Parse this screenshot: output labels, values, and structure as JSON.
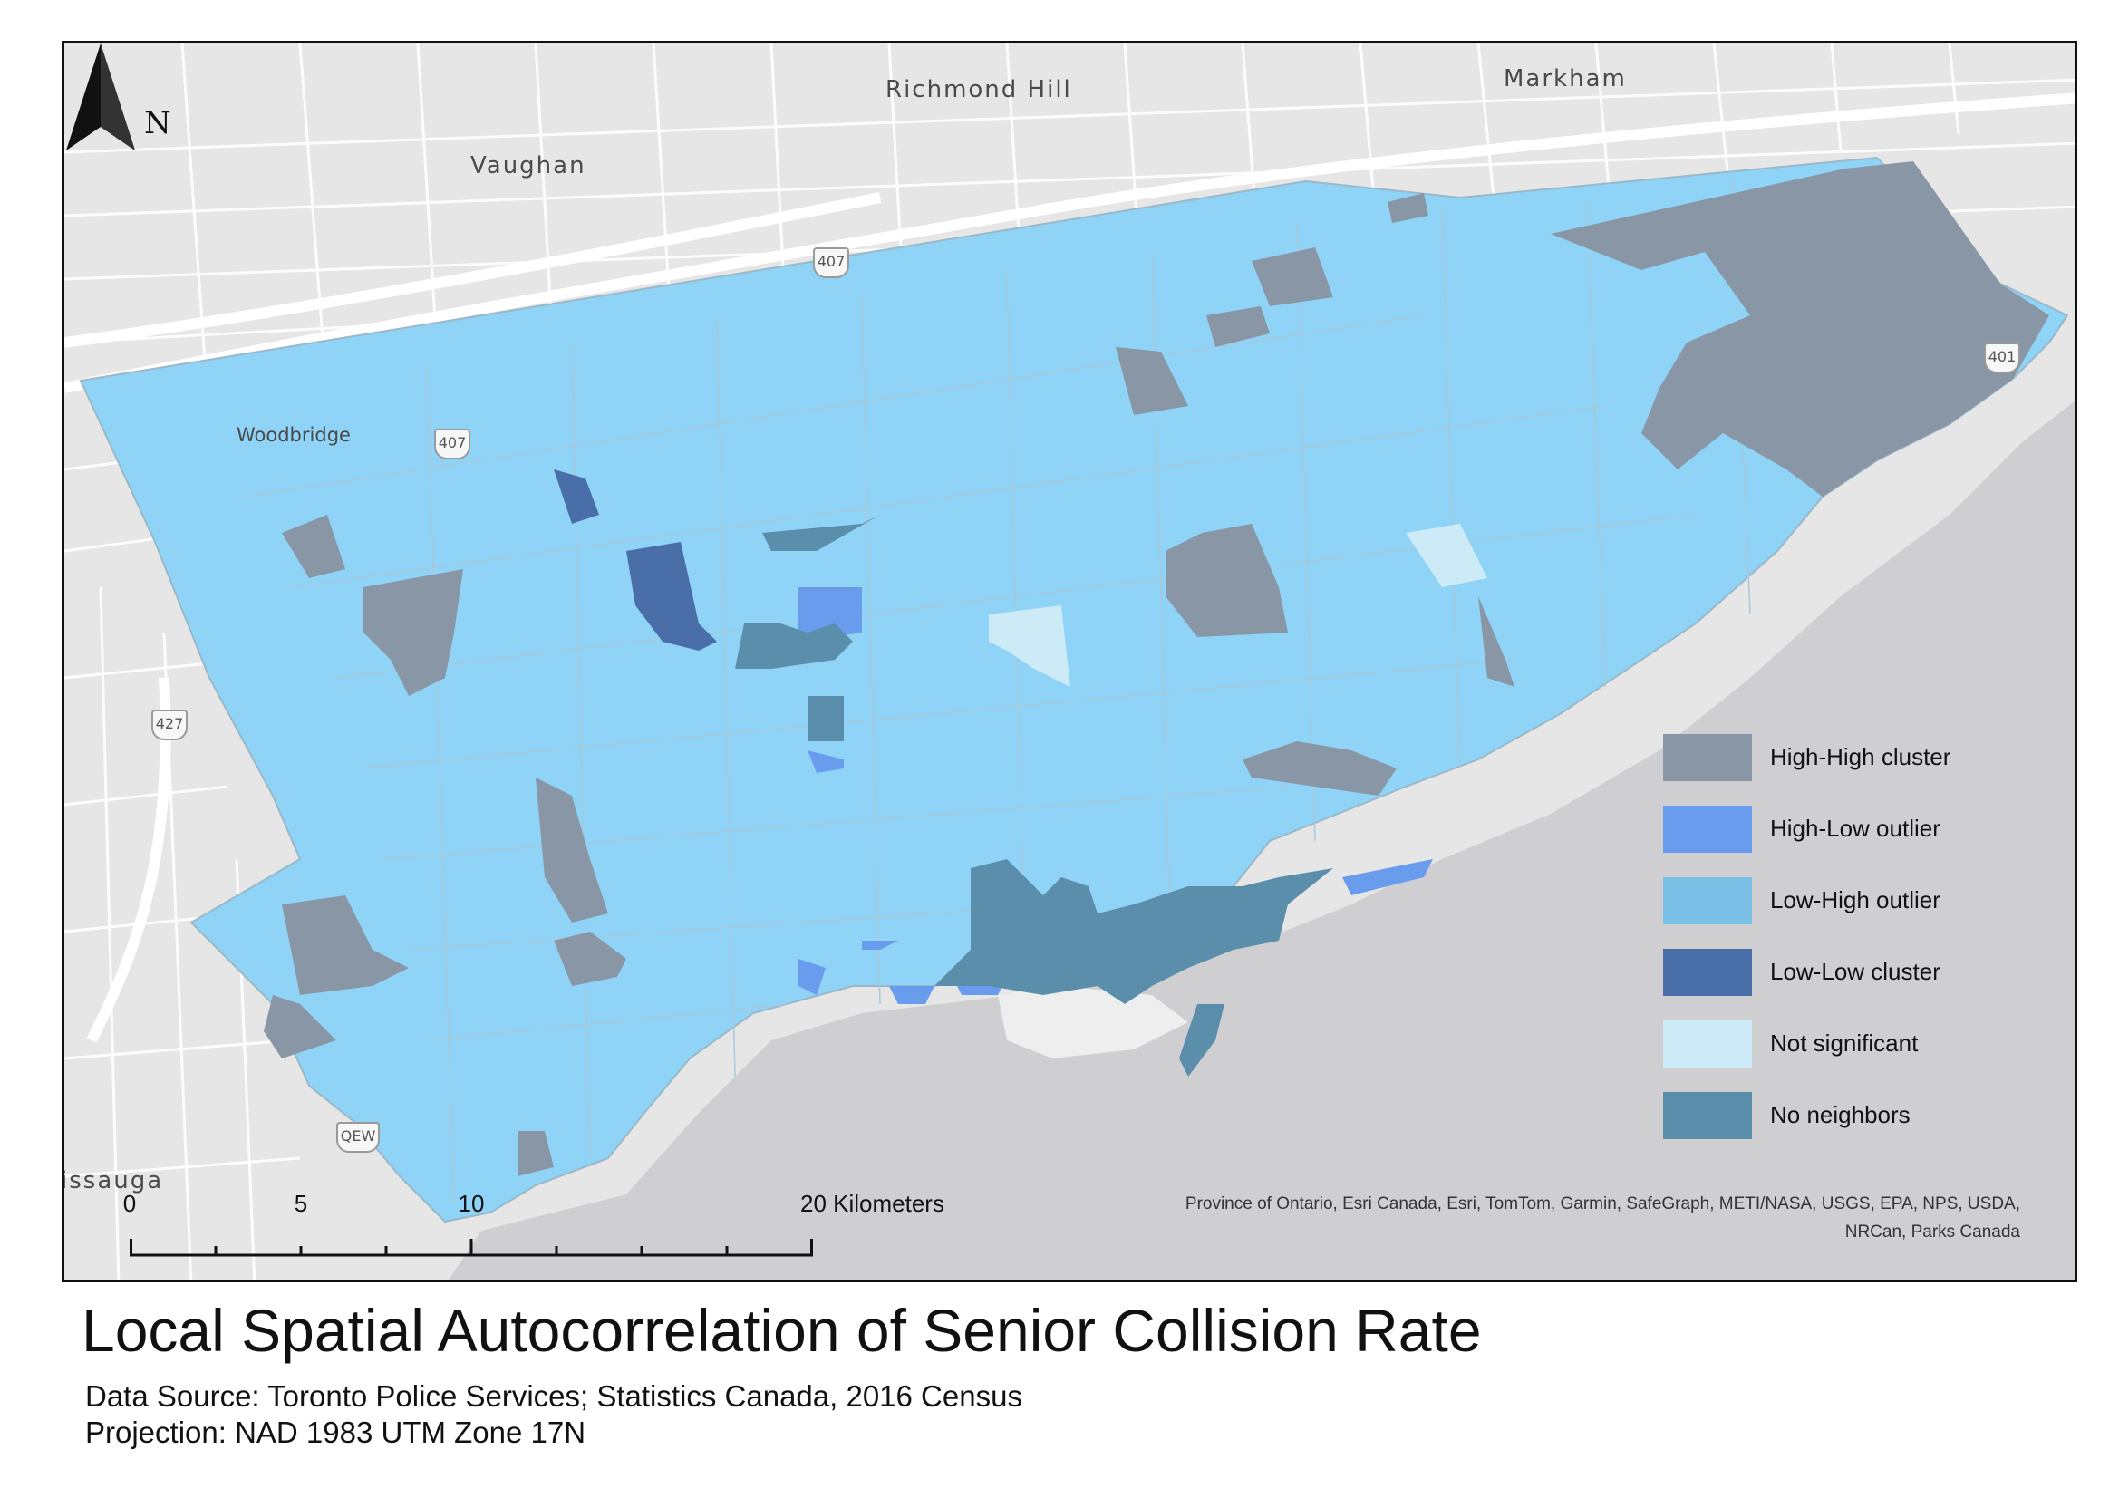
{
  "title": "Local Spatial Autocorrelation of Senior Collision Rate",
  "data_source": "Data Source: Toronto Police Services; Statistics Canada, 2016 Census",
  "projection": "Projection: NAD 1983 UTM Zone 17N",
  "attribution_line1": "Province of Ontario, Esri Canada, Esri, TomTom, Garmin, SafeGraph, METI/NASA, USGS, EPA, NPS, USDA,",
  "attribution_line2": "NRCan, Parks Canada",
  "north_arrow_label": "N",
  "places": {
    "richmond_hill": "Richmond Hill",
    "markham": "Markham",
    "vaughan": "Vaughan",
    "woodbridge": "Woodbridge",
    "mississauga": "issauga"
  },
  "highway_shields": {
    "h407_upper": "407",
    "h407_lower": "407",
    "h401": "401",
    "h427": "427",
    "qew": "QEW"
  },
  "scale_bar": {
    "labels": [
      "0",
      "5",
      "10",
      "20 Kilometers"
    ],
    "values_km": [
      0,
      5,
      10,
      20
    ]
  },
  "legend": [
    {
      "label": "High-High cluster",
      "color": "#8896a6"
    },
    {
      "label": "High-Low outlier",
      "color": "#6a9cee"
    },
    {
      "label": "Low-High outlier",
      "color": "#7ac0e6"
    },
    {
      "label": "Low-Low cluster",
      "color": "#4a6ea8"
    },
    {
      "label": "Not significant",
      "color": "#cdeaf7"
    },
    {
      "label": "No neighbors",
      "color": "#5a8eaa"
    }
  ],
  "colors": {
    "land": "#e6e6e6",
    "water": "#cfcfd1",
    "toronto_base": "#8fd3f7"
  }
}
